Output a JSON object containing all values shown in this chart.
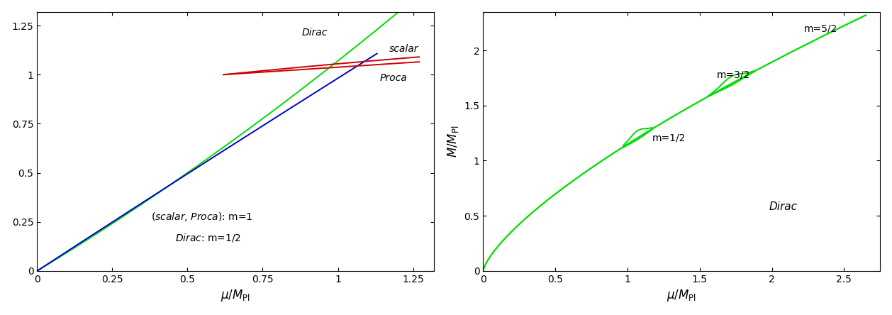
{
  "left_panel": {
    "xlabel": "μ/M$_{Pl}$",
    "xlim": [
      0,
      1.32
    ],
    "ylim": [
      0,
      1.32
    ],
    "xticks": [
      0,
      0.25,
      0.5,
      0.75,
      1.0,
      1.25
    ],
    "yticks": [
      0,
      0.25,
      0.5,
      0.75,
      1.0,
      1.25
    ],
    "label_dirac": "Dirac",
    "label_scalar": "scalar",
    "label_proca": "Proca",
    "color_dirac": "#00dd00",
    "color_scalar": "#cc0000",
    "color_proca": "#0000cc"
  },
  "right_panel": {
    "xlabel": "μ/M$_{Pl}$",
    "ylabel": "M/M$_{Pl}$",
    "xlim": [
      0,
      2.75
    ],
    "ylim": [
      0,
      2.35
    ],
    "xticks": [
      0,
      0.5,
      1.0,
      1.5,
      2.0,
      2.5
    ],
    "yticks": [
      0,
      0.5,
      1.0,
      1.5,
      2.0
    ],
    "label_m12": "m=1/2",
    "label_m32": "m=3/2",
    "label_m52": "m=5/2",
    "label_dirac": "Dirac",
    "color_green": "#00dd00"
  }
}
